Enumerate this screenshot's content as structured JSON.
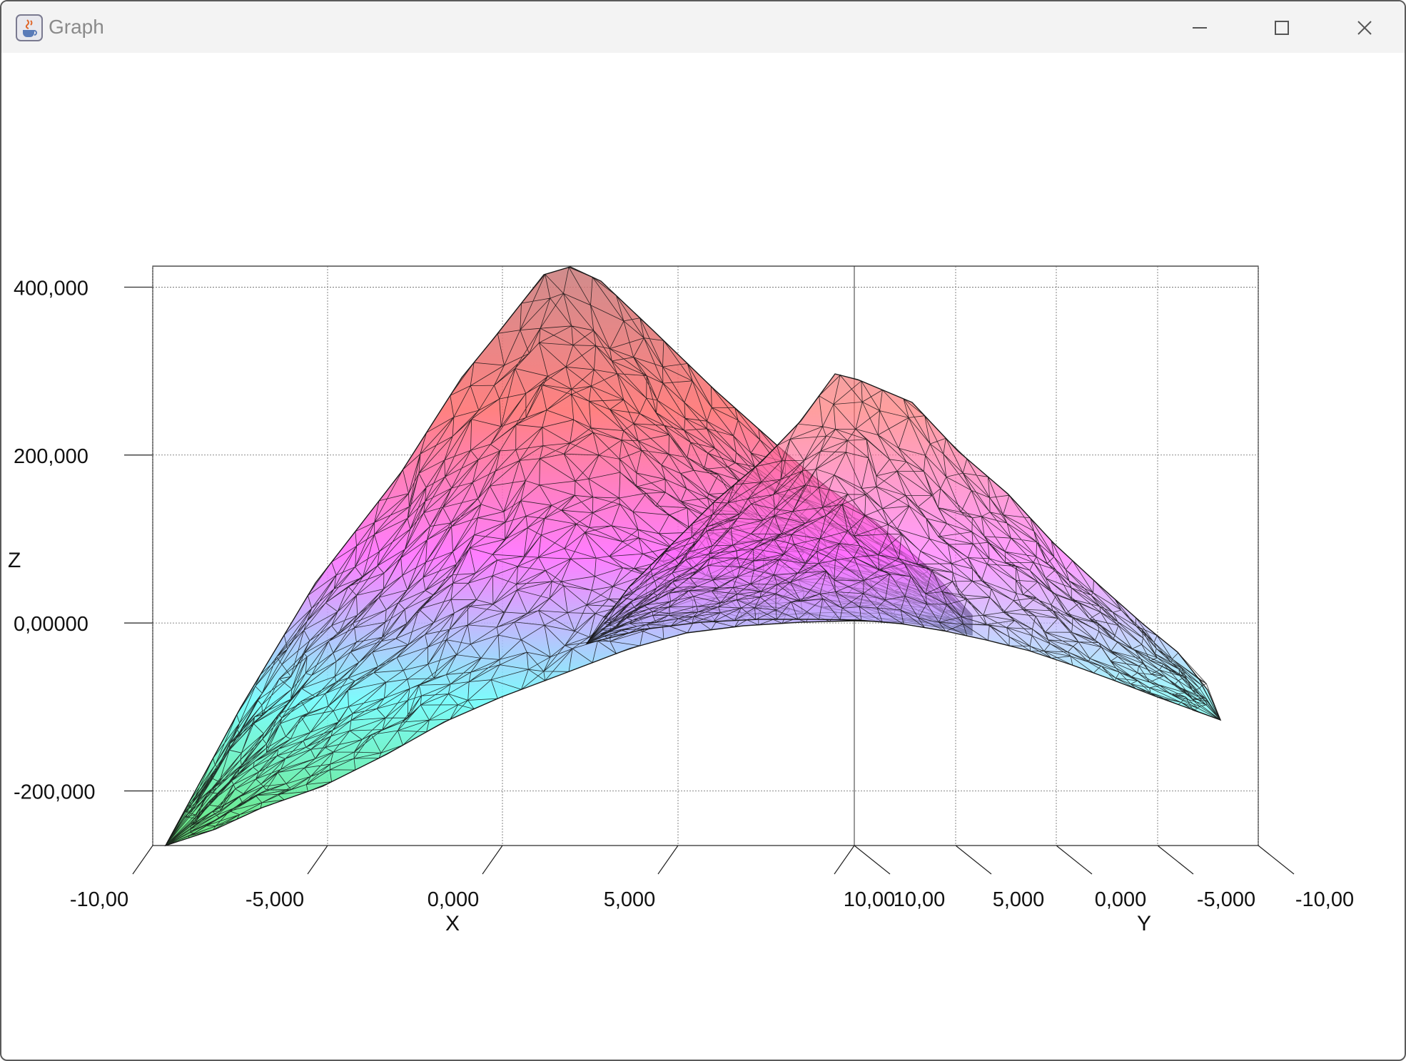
{
  "window": {
    "title": "Graph",
    "icon": "java-cup-icon",
    "controls": [
      "minimize-icon",
      "maximize-icon",
      "close-icon"
    ]
  },
  "chart_data": {
    "type": "surface",
    "zlabel": "Z",
    "xlabel": "X",
    "ylabel": "Y",
    "z_ticks": [
      "400,000",
      "200,000",
      "0,00000",
      "-200,000"
    ],
    "x_ticks": [
      "-10,00",
      "-5,000",
      "0,000",
      "5,000",
      "10,00"
    ],
    "y_ticks": [
      "10,00",
      "5,000",
      "0,000",
      "-5,000",
      "-10,00"
    ],
    "zlim": [
      -265000,
      425000
    ],
    "xlim": [
      -10,
      10
    ],
    "ylim": [
      10,
      -10
    ],
    "grid": true,
    "colormap": [
      "#4ee060",
      "#66fbfb",
      "#ff66ff",
      "#ff6b6b",
      "#c87878"
    ],
    "peaks": [
      {
        "surface": "back",
        "x": 2,
        "y": -10,
        "z": 425000
      },
      {
        "surface": "front",
        "x": 10,
        "y": 8,
        "z": 295000
      }
    ]
  }
}
